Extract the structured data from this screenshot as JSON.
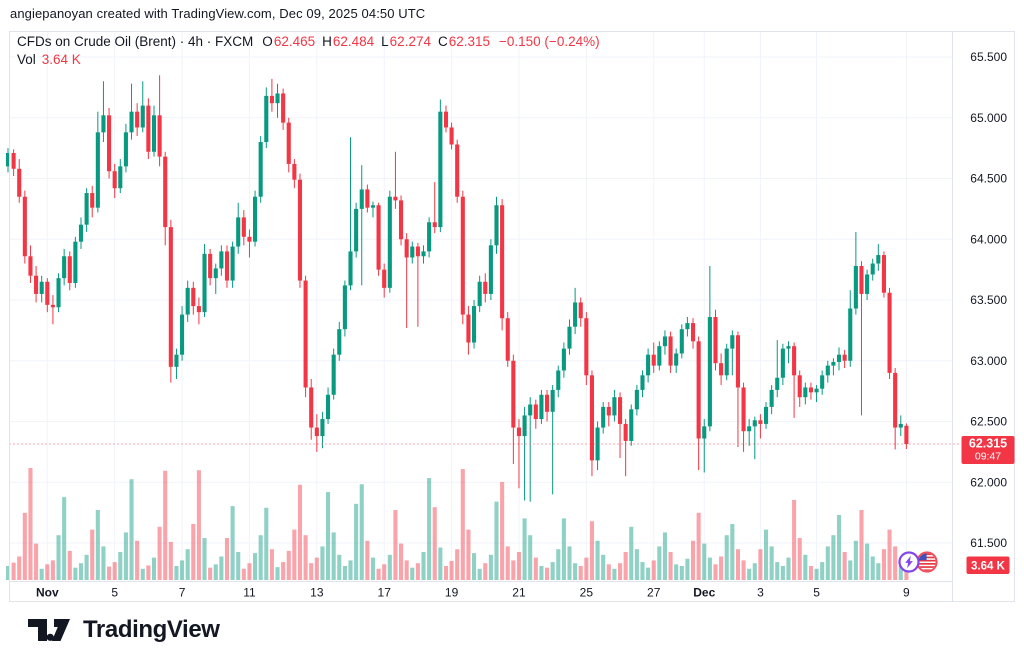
{
  "attribution": "angiepanoyan created with TradingView.com, Dec 09, 2025 04:50 UTC",
  "legend": {
    "title": "CFDs on Crude Oil (Brent) · 4h · FXCM",
    "ohlc": [
      {
        "label": "O",
        "value": "62.465"
      },
      {
        "label": "H",
        "value": "62.484"
      },
      {
        "label": "L",
        "value": "62.274"
      },
      {
        "label": "C",
        "value": "62.315"
      }
    ],
    "change": "−0.150 (−0.24%)",
    "volume_label": "Vol",
    "volume_value": "3.64 K"
  },
  "price_scale": {
    "current_price_label": "62.315",
    "countdown": "09:47",
    "volume_badge": "3.64 K"
  },
  "logo": {
    "text": "TradingView"
  },
  "icons": [
    {
      "name": "economic-event-importance-icon",
      "glyph": "lightning"
    },
    {
      "name": "us-flag-event-icon",
      "glyph": "us-flag"
    }
  ],
  "colors": {
    "up": "#089981",
    "down": "#f23645",
    "vol_up": "rgba(8,153,129,0.45)",
    "vol_down": "rgba(242,54,69,0.45)",
    "grid": "#f0f3fa",
    "border": "#e0e3eb",
    "text": "#131722",
    "badge_text": "#ffffff",
    "event_purple": "#8345ec",
    "flag_ring": "#f0505c",
    "flag_blue": "#3f51b5",
    "flag_red": "#e53945"
  },
  "chart_data": {
    "type": "candlestick",
    "title": "CFDs on Crude Oil (Brent)",
    "interval": "4h",
    "exchange": "FXCM",
    "legend_last": {
      "open": 62.465,
      "high": 62.484,
      "low": 62.274,
      "close": 62.315,
      "change": -0.15,
      "change_pct": -0.24
    },
    "current_price": 62.315,
    "countdown": "09:47",
    "last_volume_k": 3.64,
    "grid": true,
    "y_axis": {
      "side": "right",
      "ticks": [
        65.5,
        65.0,
        64.5,
        64.0,
        63.5,
        63.0,
        62.5,
        62.0,
        61.5
      ],
      "visible_range": [
        61.2,
        65.7
      ]
    },
    "x_axis": {
      "ticks": [
        {
          "idx": 7,
          "label": "Nov",
          "month": true
        },
        {
          "idx": 19,
          "label": "5"
        },
        {
          "idx": 31,
          "label": "7"
        },
        {
          "idx": 43,
          "label": "11"
        },
        {
          "idx": 55,
          "label": "13"
        },
        {
          "idx": 67,
          "label": "17"
        },
        {
          "idx": 79,
          "label": "19"
        },
        {
          "idx": 91,
          "label": "21"
        },
        {
          "idx": 103,
          "label": "25"
        },
        {
          "idx": 115,
          "label": "27"
        },
        {
          "idx": 124,
          "label": "Dec",
          "month": true
        },
        {
          "idx": 134,
          "label": "3"
        },
        {
          "idx": 144,
          "label": "5"
        },
        {
          "idx": 160,
          "label": "9"
        }
      ]
    },
    "candles": [
      [
        64.6,
        64.75,
        64.55,
        64.71
      ],
      [
        64.71,
        64.74,
        64.52,
        64.58
      ],
      [
        64.58,
        64.66,
        64.3,
        64.35
      ],
      [
        64.35,
        64.4,
        63.8,
        63.86
      ],
      [
        63.86,
        63.95,
        63.64,
        63.7
      ],
      [
        63.7,
        63.78,
        63.48,
        63.55
      ],
      [
        63.55,
        63.7,
        63.48,
        63.65
      ],
      [
        63.65,
        63.68,
        63.4,
        63.46
      ],
      [
        63.46,
        63.54,
        63.3,
        63.44
      ],
      [
        63.44,
        63.72,
        63.4,
        63.68
      ],
      [
        63.68,
        63.92,
        63.62,
        63.86
      ],
      [
        63.86,
        63.9,
        63.58,
        63.64
      ],
      [
        63.64,
        64.02,
        63.6,
        63.98
      ],
      [
        63.98,
        64.18,
        63.92,
        64.12
      ],
      [
        64.12,
        64.42,
        64.06,
        64.38
      ],
      [
        64.38,
        64.44,
        64.18,
        64.26
      ],
      [
        64.26,
        65.05,
        64.22,
        64.88
      ],
      [
        64.88,
        65.3,
        64.8,
        65.02
      ],
      [
        65.02,
        65.08,
        64.5,
        64.56
      ],
      [
        64.56,
        64.62,
        64.34,
        64.42
      ],
      [
        64.42,
        64.66,
        64.38,
        64.6
      ],
      [
        64.6,
        64.95,
        64.55,
        64.88
      ],
      [
        64.88,
        65.28,
        64.82,
        65.05
      ],
      [
        65.05,
        65.12,
        64.85,
        64.92
      ],
      [
        64.92,
        65.3,
        64.88,
        65.1
      ],
      [
        65.1,
        65.16,
        64.66,
        64.72
      ],
      [
        64.72,
        65.1,
        64.68,
        65.02
      ],
      [
        65.02,
        65.35,
        64.6,
        64.68
      ],
      [
        64.68,
        64.72,
        63.95,
        64.1
      ],
      [
        64.1,
        64.16,
        62.82,
        62.95
      ],
      [
        62.95,
        63.1,
        62.85,
        63.05
      ],
      [
        63.05,
        63.45,
        63.0,
        63.38
      ],
      [
        63.38,
        63.66,
        63.32,
        63.6
      ],
      [
        63.6,
        63.65,
        63.38,
        63.45
      ],
      [
        63.45,
        63.52,
        63.3,
        63.4
      ],
      [
        63.4,
        63.96,
        63.36,
        63.88
      ],
      [
        63.88,
        63.92,
        63.62,
        63.68
      ],
      [
        63.68,
        63.8,
        63.55,
        63.76
      ],
      [
        63.76,
        63.95,
        63.7,
        63.9
      ],
      [
        63.9,
        63.95,
        63.6,
        63.66
      ],
      [
        63.66,
        63.98,
        63.6,
        63.94
      ],
      [
        63.94,
        64.3,
        63.88,
        64.18
      ],
      [
        64.18,
        64.24,
        63.95,
        64.02
      ],
      [
        64.02,
        64.08,
        63.85,
        63.98
      ],
      [
        63.98,
        64.4,
        63.94,
        64.35
      ],
      [
        64.35,
        64.85,
        64.3,
        64.8
      ],
      [
        64.8,
        65.25,
        64.75,
        65.18
      ],
      [
        65.18,
        65.32,
        65.05,
        65.12
      ],
      [
        65.12,
        65.28,
        65.0,
        65.2
      ],
      [
        65.2,
        65.24,
        64.9,
        64.96
      ],
      [
        64.96,
        65.0,
        64.55,
        64.62
      ],
      [
        64.62,
        64.66,
        64.42,
        64.49
      ],
      [
        64.49,
        64.54,
        63.6,
        63.66
      ],
      [
        63.66,
        63.7,
        62.7,
        62.78
      ],
      [
        62.78,
        62.85,
        62.35,
        62.45
      ],
      [
        62.45,
        62.56,
        62.25,
        62.38
      ],
      [
        62.38,
        62.58,
        62.28,
        62.52
      ],
      [
        62.52,
        62.78,
        62.48,
        62.72
      ],
      [
        62.72,
        63.1,
        62.68,
        63.05
      ],
      [
        63.05,
        63.32,
        63.0,
        63.26
      ],
      [
        63.26,
        63.66,
        63.2,
        63.62
      ],
      [
        63.62,
        64.84,
        63.58,
        63.9
      ],
      [
        63.9,
        64.3,
        63.85,
        64.25
      ],
      [
        64.25,
        64.61,
        63.62,
        64.41
      ],
      [
        64.41,
        64.45,
        64.22,
        64.26
      ],
      [
        64.26,
        64.31,
        64.18,
        64.28
      ],
      [
        64.28,
        64.3,
        63.7,
        63.75
      ],
      [
        63.75,
        63.8,
        63.52,
        63.6
      ],
      [
        63.6,
        64.4,
        63.56,
        64.35
      ],
      [
        64.35,
        64.72,
        64.25,
        64.32
      ],
      [
        64.32,
        64.36,
        63.95,
        64.0
      ],
      [
        64.0,
        64.05,
        63.27,
        63.85
      ],
      [
        63.85,
        63.98,
        63.8,
        63.94
      ],
      [
        63.94,
        63.97,
        63.28,
        63.86
      ],
      [
        63.86,
        63.95,
        63.8,
        63.9
      ],
      [
        63.9,
        64.18,
        63.85,
        64.14
      ],
      [
        64.14,
        64.47,
        64.05,
        64.1
      ],
      [
        64.1,
        65.15,
        64.06,
        65.05
      ],
      [
        65.05,
        65.1,
        64.88,
        64.92
      ],
      [
        64.92,
        64.96,
        64.74,
        64.78
      ],
      [
        64.78,
        64.82,
        64.3,
        64.35
      ],
      [
        64.35,
        64.4,
        63.3,
        63.38
      ],
      [
        63.38,
        63.45,
        63.05,
        63.15
      ],
      [
        63.15,
        63.5,
        63.1,
        63.45
      ],
      [
        63.45,
        63.7,
        63.4,
        63.65
      ],
      [
        63.65,
        63.72,
        63.48,
        63.55
      ],
      [
        63.55,
        64.0,
        63.5,
        63.95
      ],
      [
        63.95,
        64.35,
        63.88,
        64.28
      ],
      [
        64.28,
        64.33,
        63.25,
        63.35
      ],
      [
        63.35,
        63.4,
        62.95,
        63.0
      ],
      [
        63.0,
        63.05,
        62.15,
        62.45
      ],
      [
        62.45,
        62.52,
        61.95,
        62.38
      ],
      [
        62.38,
        62.62,
        61.85,
        62.55
      ],
      [
        62.55,
        62.7,
        61.84,
        62.64
      ],
      [
        62.64,
        62.68,
        62.44,
        62.52
      ],
      [
        62.52,
        62.76,
        62.48,
        62.72
      ],
      [
        62.72,
        62.76,
        62.5,
        62.58
      ],
      [
        62.58,
        62.8,
        61.9,
        62.76
      ],
      [
        62.76,
        62.96,
        62.7,
        62.92
      ],
      [
        62.92,
        63.15,
        62.86,
        63.1
      ],
      [
        63.1,
        63.34,
        63.05,
        63.28
      ],
      [
        63.28,
        63.6,
        63.22,
        63.48
      ],
      [
        63.48,
        63.52,
        63.28,
        63.35
      ],
      [
        63.35,
        63.4,
        62.8,
        62.88
      ],
      [
        62.88,
        62.92,
        62.05,
        62.18
      ],
      [
        62.18,
        62.5,
        62.1,
        62.45
      ],
      [
        62.45,
        62.66,
        62.4,
        62.62
      ],
      [
        62.62,
        62.66,
        62.46,
        62.55
      ],
      [
        62.55,
        62.76,
        62.5,
        62.7
      ],
      [
        62.7,
        62.74,
        62.2,
        62.48
      ],
      [
        62.48,
        62.52,
        62.05,
        62.34
      ],
      [
        62.34,
        62.64,
        62.3,
        62.6
      ],
      [
        62.6,
        62.8,
        62.55,
        62.76
      ],
      [
        62.76,
        62.92,
        62.7,
        62.88
      ],
      [
        62.88,
        63.1,
        62.82,
        63.05
      ],
      [
        63.05,
        63.15,
        62.9,
        62.96
      ],
      [
        62.96,
        63.16,
        62.92,
        63.12
      ],
      [
        63.12,
        63.25,
        63.05,
        63.2
      ],
      [
        63.2,
        63.24,
        62.9,
        62.96
      ],
      [
        62.96,
        63.1,
        62.9,
        63.06
      ],
      [
        63.06,
        63.3,
        63.02,
        63.26
      ],
      [
        63.26,
        63.36,
        63.2,
        63.31
      ],
      [
        63.31,
        63.35,
        63.1,
        63.16
      ],
      [
        63.16,
        63.2,
        62.1,
        62.36
      ],
      [
        62.36,
        62.52,
        62.08,
        62.46
      ],
      [
        62.46,
        63.78,
        62.42,
        63.36
      ],
      [
        63.36,
        63.42,
        62.92,
        62.98
      ],
      [
        62.98,
        63.06,
        62.8,
        62.88
      ],
      [
        62.88,
        63.14,
        62.84,
        63.1
      ],
      [
        63.1,
        63.25,
        62.88,
        63.21
      ],
      [
        63.21,
        63.24,
        62.29,
        62.78
      ],
      [
        62.78,
        62.82,
        62.25,
        62.42
      ],
      [
        62.42,
        62.52,
        62.3,
        62.46
      ],
      [
        62.46,
        62.54,
        62.19,
        62.51
      ],
      [
        62.51,
        62.56,
        62.36,
        62.48
      ],
      [
        62.48,
        62.66,
        62.44,
        62.62
      ],
      [
        62.62,
        62.8,
        62.56,
        62.76
      ],
      [
        62.76,
        63.17,
        62.7,
        62.86
      ],
      [
        62.86,
        63.14,
        62.8,
        63.1
      ],
      [
        63.1,
        63.16,
        62.98,
        63.12
      ],
      [
        63.12,
        63.15,
        62.53,
        62.88
      ],
      [
        62.88,
        62.92,
        62.62,
        62.7
      ],
      [
        62.7,
        62.82,
        62.64,
        62.78
      ],
      [
        62.78,
        62.82,
        62.68,
        62.74
      ],
      [
        62.74,
        62.8,
        62.66,
        62.77
      ],
      [
        62.77,
        62.92,
        62.72,
        62.88
      ],
      [
        62.88,
        63.0,
        62.82,
        62.96
      ],
      [
        62.96,
        63.02,
        62.88,
        62.99
      ],
      [
        62.99,
        63.11,
        62.92,
        63.05
      ],
      [
        63.05,
        63.09,
        62.94,
        63.0
      ],
      [
        63.0,
        63.58,
        62.95,
        63.43
      ],
      [
        63.43,
        64.06,
        63.38,
        63.78
      ],
      [
        63.78,
        63.82,
        62.55,
        63.55
      ],
      [
        63.55,
        63.75,
        63.5,
        63.71
      ],
      [
        63.71,
        63.84,
        63.66,
        63.8
      ],
      [
        63.8,
        63.96,
        63.74,
        63.87
      ],
      [
        63.87,
        63.9,
        63.52,
        63.56
      ],
      [
        63.56,
        63.6,
        62.85,
        62.9
      ],
      [
        62.9,
        62.94,
        62.27,
        62.45
      ],
      [
        62.45,
        62.55,
        62.38,
        62.48
      ],
      [
        62.465,
        62.484,
        62.274,
        62.315
      ]
    ],
    "volumes_k": [
      2.5,
      3.1,
      4.2,
      12,
      20,
      6.5,
      2,
      2.8,
      3.5,
      8,
      14.8,
      5.2,
      2.2,
      3,
      4.5,
      9,
      12.5,
      6,
      2.4,
      3.2,
      5,
      8.5,
      18,
      7,
      2,
      2.6,
      4,
      9.5,
      19.5,
      6.8,
      2.5,
      3.5,
      5.5,
      10,
      19.6,
      7.5,
      2.2,
      2.8,
      4.2,
      7.5,
      13.2,
      5,
      2,
      3,
      4.8,
      8,
      12.9,
      5.5,
      2.3,
      3.2,
      5.2,
      9,
      17,
      8,
      3,
      4,
      6,
      15.7,
      8.5,
      4.5,
      2.5,
      3.5,
      13.6,
      17.1,
      7,
      4,
      2,
      2.8,
      4.5,
      12.5,
      6.5,
      3.5,
      2.2,
      3,
      5,
      18.2,
      13,
      5.8,
      2.5,
      3.4,
      5.5,
      19.8,
      9,
      4.8,
      2,
      3,
      4.5,
      14,
      17.5,
      6,
      3.5,
      5,
      11,
      8,
      4,
      2.5,
      2.2,
      3.2,
      5.5,
      11,
      6,
      3,
      2.5,
      4,
      10.5,
      7,
      4.5,
      2.8,
      2,
      3,
      5,
      9.5,
      5.5,
      3.2,
      2.2,
      3.5,
      6,
      8.5,
      5,
      2.8,
      2.5,
      3.8,
      7,
      12,
      6.5,
      4,
      2.8,
      4.2,
      8,
      10,
      5.5,
      3.5,
      2,
      3,
      5.5,
      9,
      6,
      3.2,
      2.5,
      4,
      14.3,
      7.5,
      4.5,
      2.5,
      2,
      3.2,
      6,
      8,
      11.6,
      5,
      3.5,
      7,
      12.5,
      6.5,
      4.2,
      3,
      5.5,
      9,
      6,
      2.5,
      3.64
    ]
  }
}
